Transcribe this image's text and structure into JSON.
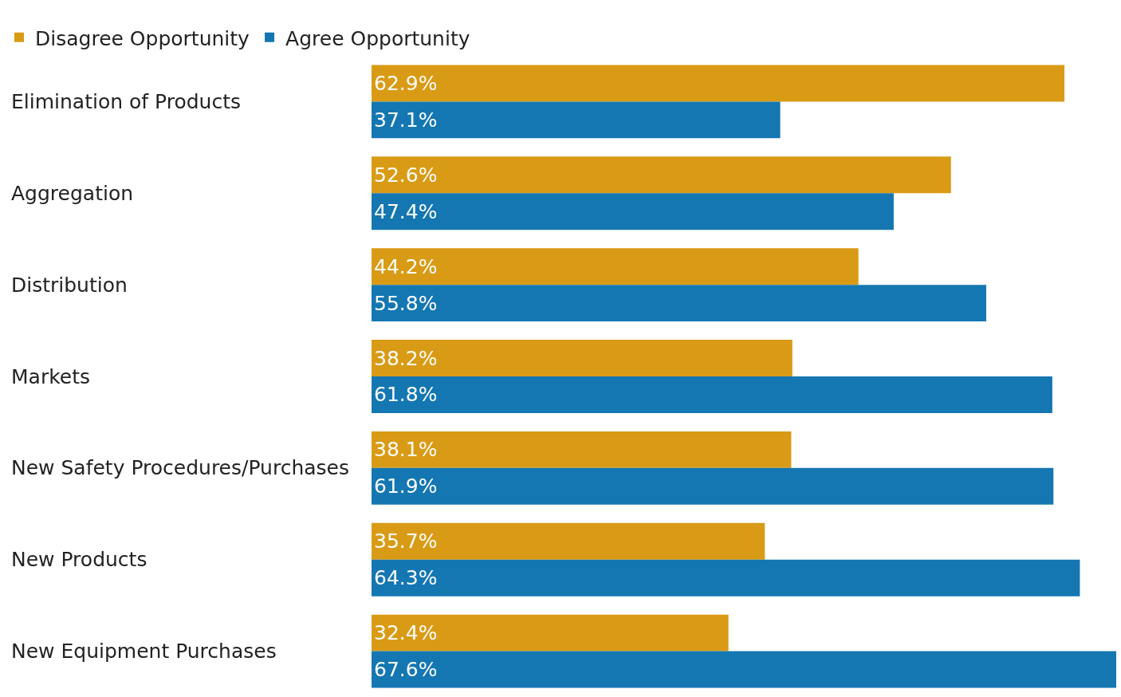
{
  "chart_data": {
    "type": "bar",
    "orientation": "horizontal",
    "legend": "top left",
    "grid": false,
    "categories": [
      "Elimination of Products",
      "Aggregation",
      "Distribution",
      "Markets",
      "New Safety Procedures/Purchases",
      "New Products",
      "New Equipment Purchases"
    ],
    "series": [
      {
        "name": "Disagree Opportunity",
        "color": "#d99b15",
        "values": [
          62.9,
          52.6,
          44.2,
          38.2,
          38.1,
          35.7,
          32.4
        ],
        "value_labels": [
          "62.9%",
          "52.6%",
          "44.2%",
          "38.2%",
          "38.1%",
          "35.7%",
          "32.4%"
        ]
      },
      {
        "name": "Agree Opportunity",
        "color": "#1477b2",
        "values": [
          37.1,
          47.4,
          55.8,
          61.8,
          61.9,
          64.3,
          67.6
        ],
        "value_labels": [
          "37.1%",
          "47.4%",
          "55.8%",
          "61.8%",
          "61.9%",
          "64.3%",
          "67.6%"
        ]
      }
    ]
  }
}
